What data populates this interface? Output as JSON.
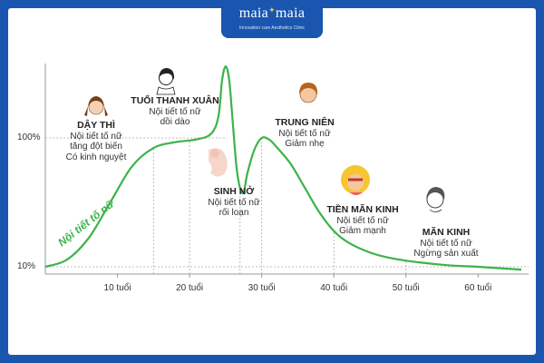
{
  "brand": {
    "name_left": "maia",
    "name_right": "maia",
    "tagline": "Innovation care Aesthetics Clinic"
  },
  "chart_data": {
    "type": "line",
    "title": "",
    "xlabel": "",
    "ylabel": "",
    "curve_label": "Nội tiết tố nữ",
    "x_ticks": [
      {
        "value": 10,
        "label": "10 tuổi"
      },
      {
        "value": 20,
        "label": "20 tuổi"
      },
      {
        "value": 30,
        "label": "30 tuổi"
      },
      {
        "value": 40,
        "label": "40 tuổi"
      },
      {
        "value": 50,
        "label": "50 tuổi"
      },
      {
        "value": 60,
        "label": "60 tuổi"
      }
    ],
    "y_ticks": [
      {
        "value": 10,
        "label": "10%"
      },
      {
        "value": 100,
        "label": "100%"
      }
    ],
    "xlim": [
      0,
      67
    ],
    "ylim": [
      0,
      160
    ],
    "series": [
      {
        "color": "#3bb34a",
        "points": [
          [
            0,
            10
          ],
          [
            3,
            15
          ],
          [
            6,
            30
          ],
          [
            9,
            55
          ],
          [
            12,
            80
          ],
          [
            15,
            93
          ],
          [
            18,
            97
          ],
          [
            21,
            99
          ],
          [
            23,
            103
          ],
          [
            24,
            115
          ],
          [
            24.5,
            140
          ],
          [
            25,
            150
          ],
          [
            25.5,
            140
          ],
          [
            26,
            110
          ],
          [
            26.5,
            80
          ],
          [
            27,
            65
          ],
          [
            27.5,
            62
          ],
          [
            28,
            75
          ],
          [
            29,
            92
          ],
          [
            30,
            100
          ],
          [
            31,
            99
          ],
          [
            32,
            94
          ],
          [
            34,
            82
          ],
          [
            36,
            65
          ],
          [
            38,
            48
          ],
          [
            40,
            35
          ],
          [
            42,
            27
          ],
          [
            45,
            20
          ],
          [
            48,
            16
          ],
          [
            52,
            13
          ],
          [
            56,
            11
          ],
          [
            60,
            10
          ],
          [
            66,
            8
          ]
        ]
      }
    ],
    "annotations": [
      {
        "x": 15,
        "title": "DẬY THÌ",
        "lines": [
          "Nội tiết tố nữ",
          "tăng đột biến",
          "Có kinh nguyệt"
        ]
      },
      {
        "x": 20,
        "title": "TUỔI THANH XUÂN",
        "lines": [
          "Nội tiết tố nữ",
          "dồi dào"
        ]
      },
      {
        "x": 27,
        "title": "SINH NỞ",
        "lines": [
          "Nội tiết tố nữ",
          "rối loạn"
        ]
      },
      {
        "x": 30,
        "title": "TRUNG NIÊN",
        "lines": [
          "Nội tiết tố nữ",
          "Giảm nhẹ"
        ]
      },
      {
        "x": 40,
        "title": "TIỀN MÃN KINH",
        "lines": [
          "Nội tiết tố nữ",
          "Giảm mạnh"
        ]
      },
      {
        "x": 50,
        "title": "MÃN KINH",
        "lines": [
          "Nội tiết tố nữ",
          "Ngừng sản xuất"
        ]
      }
    ],
    "grid": "dashed-guides",
    "legend": "none"
  }
}
